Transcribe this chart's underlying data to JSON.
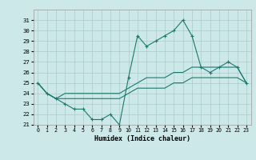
{
  "xlabel": "Humidex (Indice chaleur)",
  "x": [
    0,
    1,
    2,
    3,
    4,
    5,
    6,
    7,
    8,
    9,
    10,
    11,
    12,
    13,
    14,
    15,
    16,
    17,
    18,
    19,
    20,
    21,
    22,
    23
  ],
  "curve_main": [
    25.0,
    24.0,
    23.5,
    23.0,
    22.5,
    22.5,
    21.5,
    21.5,
    22.0,
    21.0,
    25.5,
    29.5,
    28.5,
    29.0,
    29.5,
    30.0,
    31.0,
    29.5,
    26.5,
    26.0,
    26.5,
    27.0,
    26.5,
    25.0
  ],
  "curve_upper": [
    25.0,
    24.0,
    23.5,
    24.0,
    24.0,
    24.0,
    24.0,
    24.0,
    24.0,
    24.0,
    24.5,
    25.0,
    25.5,
    25.5,
    25.5,
    26.0,
    26.0,
    26.5,
    26.5,
    26.5,
    26.5,
    26.5,
    26.5,
    25.0
  ],
  "curve_lower": [
    25.0,
    24.0,
    23.5,
    23.5,
    23.5,
    23.5,
    23.5,
    23.5,
    23.5,
    23.5,
    24.0,
    24.5,
    24.5,
    24.5,
    24.5,
    25.0,
    25.0,
    25.5,
    25.5,
    25.5,
    25.5,
    25.5,
    25.5,
    25.0
  ],
  "line_color": "#1a7a6e",
  "bg_color": "#cce8e8",
  "grid_color": "#aacccc",
  "ylim_min": 21,
  "ylim_max": 32,
  "yticks": [
    21,
    22,
    23,
    24,
    25,
    26,
    27,
    28,
    29,
    30,
    31
  ],
  "xticks": [
    0,
    1,
    2,
    3,
    4,
    5,
    6,
    7,
    8,
    9,
    10,
    11,
    12,
    13,
    14,
    15,
    16,
    17,
    18,
    19,
    20,
    21,
    22,
    23
  ]
}
